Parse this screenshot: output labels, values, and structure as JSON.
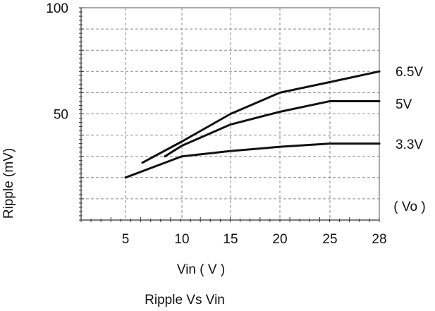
{
  "chart_data": {
    "type": "line",
    "x_ticks": [
      5,
      10,
      15,
      20,
      25,
      28
    ],
    "y_ticks": [
      100,
      50
    ],
    "xlabel": "Vin ( V )",
    "ylabel": "Ripple (mV)",
    "caption": "Ripple  Vs  Vin",
    "legend_title": "( Vo )",
    "ylim": [
      0,
      100
    ],
    "xlim": [
      0,
      28
    ],
    "grid": true,
    "series": [
      {
        "name": "6.5V",
        "x": [
          6.5,
          10,
          15,
          20,
          25,
          28
        ],
        "y": [
          27,
          37,
          50,
          60,
          65,
          70
        ]
      },
      {
        "name": "5V",
        "x": [
          8.5,
          10,
          15,
          20,
          25,
          28
        ],
        "y": [
          30,
          35,
          45,
          51,
          56,
          56
        ]
      },
      {
        "name": "3.3V",
        "x": [
          5,
          10,
          15,
          20,
          25,
          28
        ],
        "y": [
          20,
          30,
          32.5,
          34.5,
          36,
          36
        ]
      }
    ]
  }
}
